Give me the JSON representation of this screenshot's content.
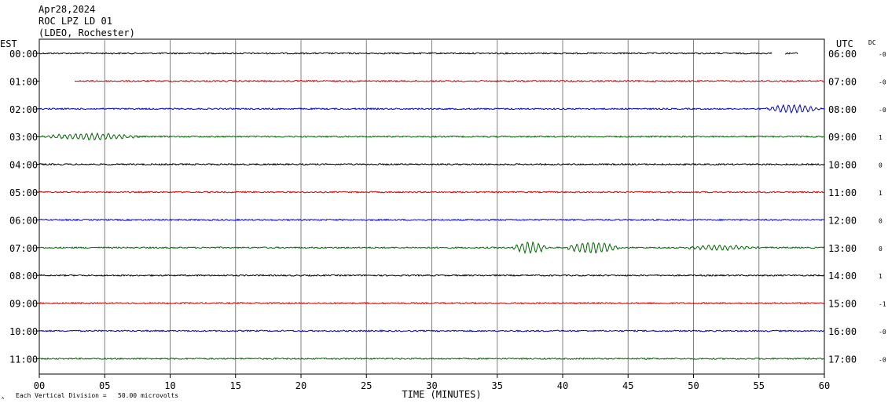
{
  "header": {
    "date": "Apr28,2024",
    "station": "ROC LPZ LD 01",
    "network": "(LDEO, Rochester)"
  },
  "labels": {
    "left_tz": "EST",
    "right_tz": "UTC",
    "dc": "DC",
    "xlabel": "TIME (MINUTES)",
    "scale_note": "Each Vertical Division =   50.00 microvolts"
  },
  "chart_data": {
    "type": "line",
    "title": "",
    "xlabel": "TIME (MINUTES)",
    "ylabel": "",
    "xlim": [
      0,
      60
    ],
    "x_ticks": [
      "00",
      "05",
      "10",
      "15",
      "20",
      "25",
      "30",
      "35",
      "40",
      "45",
      "50",
      "55",
      "60"
    ],
    "grid": "vertical every 5 minutes",
    "trace_colors": [
      "#000000",
      "#cc0000",
      "#0000cc",
      "#006600"
    ],
    "rows": [
      {
        "est": "00:00",
        "utc": "06:00",
        "dc": "-0",
        "segments": [
          [
            0,
            56
          ],
          [
            57,
            58
          ]
        ],
        "events": []
      },
      {
        "est": "01:00",
        "utc": "07:00",
        "dc": "-0",
        "segments": [
          [
            2.7,
            60
          ]
        ],
        "events": []
      },
      {
        "est": "02:00",
        "utc": "08:00",
        "dc": "-0",
        "segments": [
          [
            0,
            60
          ]
        ],
        "events": [
          {
            "start": 55.3,
            "end": 60,
            "amp": 5
          }
        ]
      },
      {
        "est": "03:00",
        "utc": "09:00",
        "dc": "1",
        "segments": [
          [
            0,
            60
          ]
        ],
        "events": [
          {
            "start": 0,
            "end": 8,
            "amp": 4
          }
        ]
      },
      {
        "est": "04:00",
        "utc": "10:00",
        "dc": "0",
        "segments": [
          [
            0,
            60
          ]
        ],
        "events": []
      },
      {
        "est": "05:00",
        "utc": "11:00",
        "dc": "1",
        "segments": [
          [
            0,
            60
          ]
        ],
        "events": []
      },
      {
        "est": "06:00",
        "utc": "12:00",
        "dc": "0",
        "segments": [
          [
            0,
            60
          ]
        ],
        "events": []
      },
      {
        "est": "07:00",
        "utc": "13:00",
        "dc": "0",
        "segments": [
          [
            0,
            60
          ]
        ],
        "events": [
          {
            "start": 36,
            "end": 39,
            "amp": 7
          },
          {
            "start": 40,
            "end": 44.5,
            "amp": 7
          },
          {
            "start": 49,
            "end": 55,
            "amp": 3
          }
        ]
      },
      {
        "est": "08:00",
        "utc": "14:00",
        "dc": "1",
        "segments": [
          [
            0,
            60
          ]
        ],
        "events": []
      },
      {
        "est": "09:00",
        "utc": "15:00",
        "dc": "-1",
        "segments": [
          [
            0,
            60
          ]
        ],
        "events": []
      },
      {
        "est": "10:00",
        "utc": "16:00",
        "dc": "-0",
        "segments": [
          [
            0,
            60
          ]
        ],
        "events": []
      },
      {
        "est": "11:00",
        "utc": "17:00",
        "dc": "-0",
        "segments": [
          [
            0,
            60
          ]
        ],
        "events": []
      }
    ]
  }
}
